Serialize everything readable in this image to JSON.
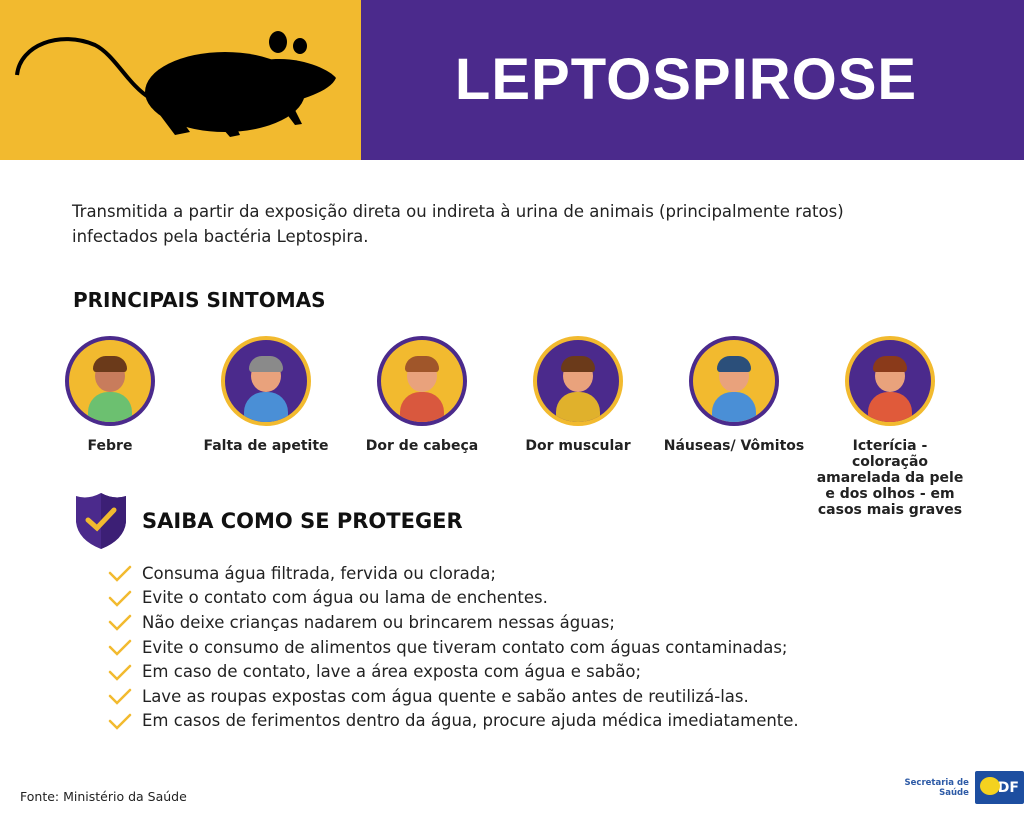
{
  "header": {
    "title": "LEPTOSPIROSE",
    "image": "rat-silhouette"
  },
  "intro": "Transmitida a partir da exposição direta ou indireta à urina de animais (principalmente ratos) infectados pela bactéria Leptospira.",
  "symptoms": {
    "heading": "PRINCIPAIS SINTOMAS",
    "items": [
      {
        "label": "Febre",
        "icon": "fever-icon"
      },
      {
        "label": "Falta de apetite",
        "icon": "no-appetite-icon"
      },
      {
        "label": "Dor de cabeça",
        "icon": "headache-icon"
      },
      {
        "label": "Dor muscular",
        "icon": "muscle-pain-icon"
      },
      {
        "label": "Náuseas/ Vômitos",
        "icon": "nausea-icon"
      },
      {
        "label": "Icterícia - coloração amarelada da pele e dos olhos - em casos mais graves",
        "icon": "jaundice-icon"
      }
    ]
  },
  "protect": {
    "heading": "SAIBA COMO SE PROTEGER",
    "items": [
      "Consuma água filtrada, fervida ou clorada;",
      "Evite o contato com água ou lama de enchentes.",
      "Não deixe crianças nadarem ou brincarem nessas águas;",
      "Evite o consumo de alimentos que tiveram contato com águas contaminadas;",
      "Em caso de contato, lave a área exposta com água e sabão;",
      "Lave as roupas expostas com água quente e sabão antes de reutilizá-las.",
      "Em casos de ferimentos dentro da água, procure ajuda médica imediatamente."
    ]
  },
  "footer": {
    "source": "Fonte: Ministério da Saúde",
    "logo_secretaria": "Secretaria de Saúde",
    "logo_gdf": "GDF"
  },
  "colors": {
    "yellow": "#f2ba2f",
    "purple": "#4b2a8c"
  }
}
